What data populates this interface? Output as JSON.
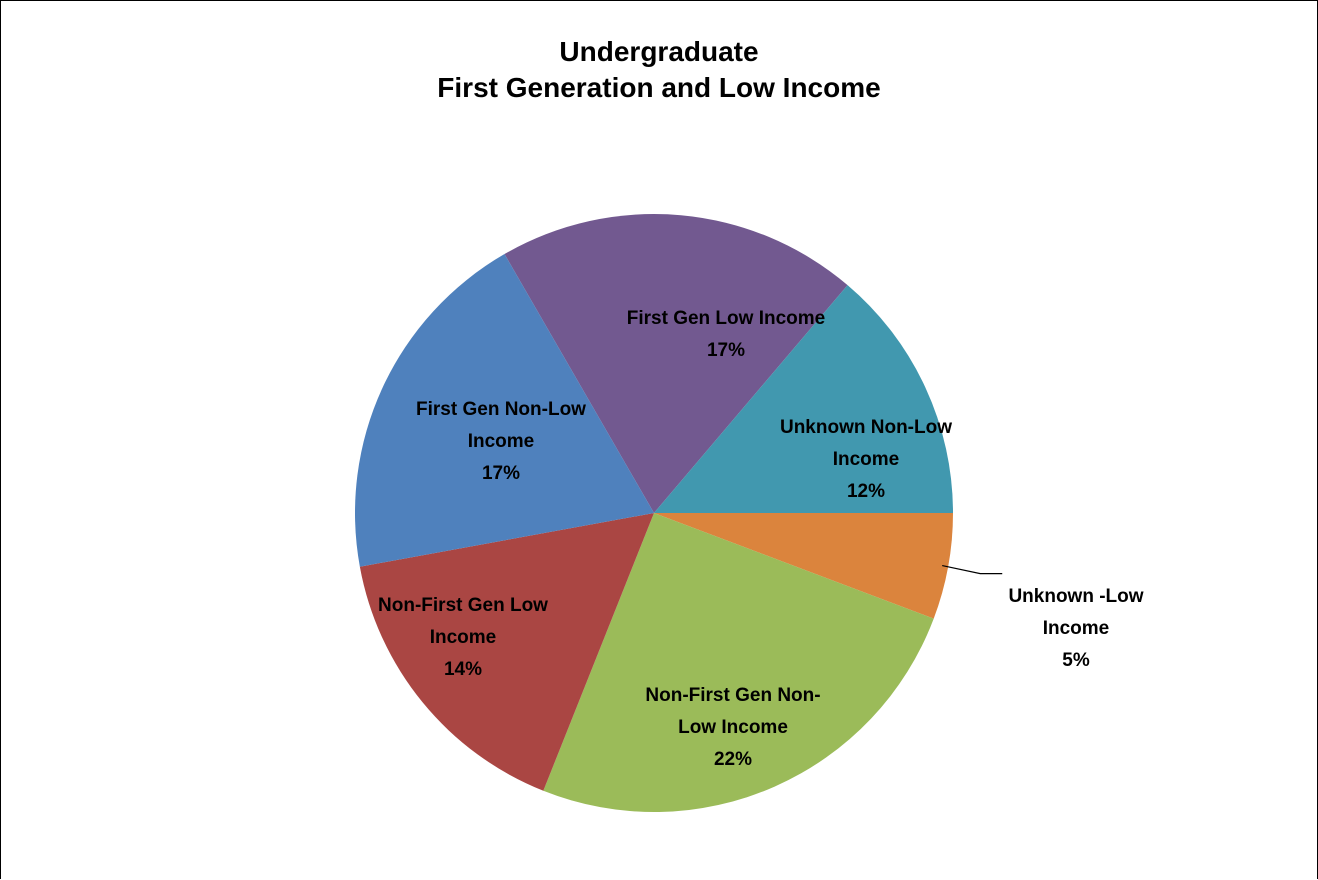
{
  "chart_data": {
    "type": "pie",
    "title_lines": [
      "Undergraduate",
      "First Generation and Low Income"
    ],
    "slices": [
      {
        "name": "First Gen Low Income",
        "value": 17,
        "label_lines": [
          "First Gen Low Income",
          "17%"
        ],
        "color": "#725990"
      },
      {
        "name": "Unknown Non-Low Income",
        "value": 12,
        "label_lines": [
          "Unknown Non-Low",
          "Income",
          "12%"
        ],
        "color": "#4198AF"
      },
      {
        "name": "Unknown -Low Income",
        "value": 5,
        "label_lines": [
          "Unknown -Low",
          "Income",
          "5%"
        ],
        "color": "#DB843D"
      },
      {
        "name": "Non-First Gen Non-Low Income",
        "value": 22,
        "label_lines": [
          "Non-First Gen Non-",
          "Low Income",
          "22%"
        ],
        "color": "#9BBB59"
      },
      {
        "name": "Non-First Gen Low Income",
        "value": 14,
        "label_lines": [
          "Non-First Gen Low",
          "Income",
          "14%"
        ],
        "color": "#AA4643"
      },
      {
        "name": "First Gen Non-Low Income",
        "value": 17,
        "label_lines": [
          "First Gen Non-Low",
          "Income",
          "17%"
        ],
        "color": "#4F81BD"
      }
    ]
  }
}
